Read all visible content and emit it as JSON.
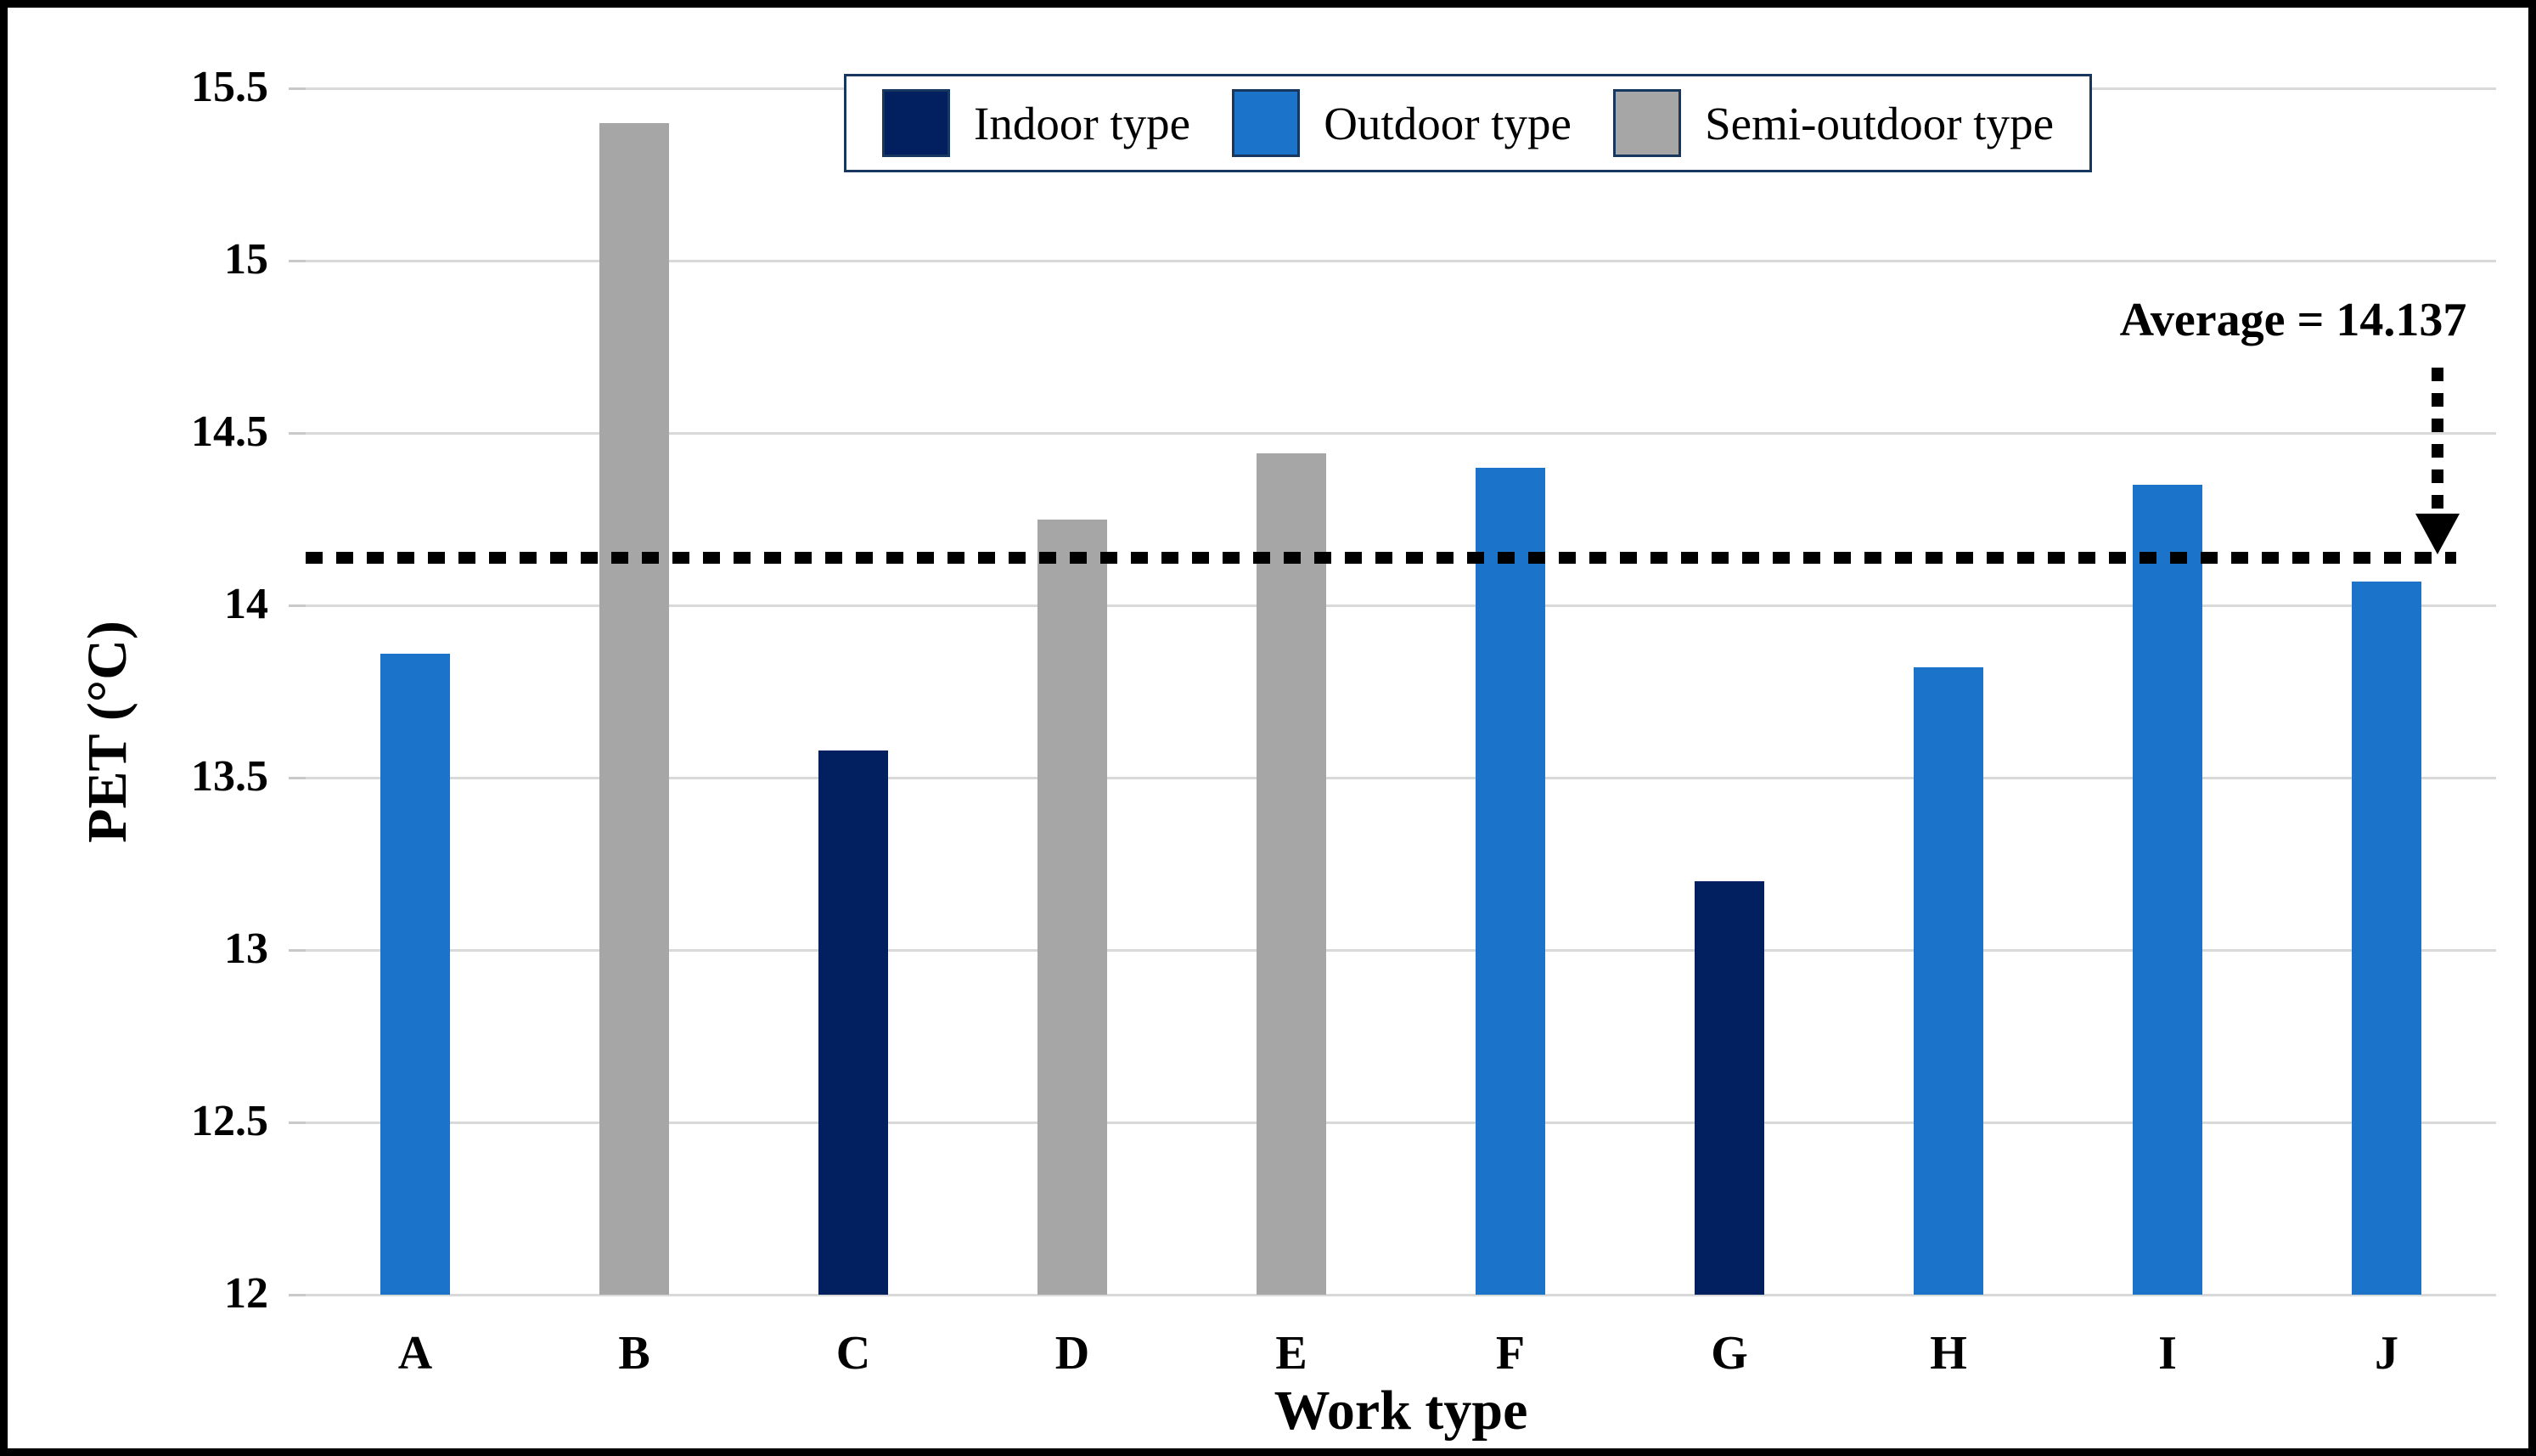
{
  "figure": {
    "background": "#ffffff",
    "border_color": "#000000"
  },
  "chart_data": {
    "type": "bar",
    "title": "",
    "xlabel": "Work type",
    "ylabel": "PET (°C)",
    "ylim": [
      12,
      15.5
    ],
    "ytick_labels": [
      "12",
      "12.5",
      "13",
      "13.5",
      "14",
      "14.5",
      "15",
      "15.5"
    ],
    "ytick_values": [
      12,
      12.5,
      13,
      13.5,
      14,
      14.5,
      15,
      15.5
    ],
    "grid": true,
    "legend_position": "top-center",
    "categories": [
      "A",
      "B",
      "C",
      "D",
      "E",
      "F",
      "G",
      "H",
      "I",
      "J"
    ],
    "values": [
      13.86,
      15.4,
      13.58,
      14.25,
      14.44,
      14.4,
      13.2,
      13.82,
      14.35,
      14.07
    ],
    "bar_types": [
      "outdoor",
      "semi_outdoor",
      "indoor",
      "semi_outdoor",
      "semi_outdoor",
      "outdoor",
      "indoor",
      "outdoor",
      "outdoor",
      "outdoor"
    ],
    "legend": {
      "items": [
        {
          "key": "indoor",
          "label": "Indoor type",
          "color": "#02205f"
        },
        {
          "key": "outdoor",
          "label": "Outdoor type",
          "color": "#1b74c9"
        },
        {
          "key": "semi_outdoor",
          "label": "Semi-outdoor type",
          "color": "#a6a6a6"
        }
      ]
    },
    "average_line": {
      "label": "Average = 14.137",
      "value": 14.137,
      "style": "dotted",
      "color": "#000000"
    }
  },
  "colors": {
    "gridline": "#d9d9d9",
    "legend_border": "#17375e",
    "annotation": "#000000"
  }
}
